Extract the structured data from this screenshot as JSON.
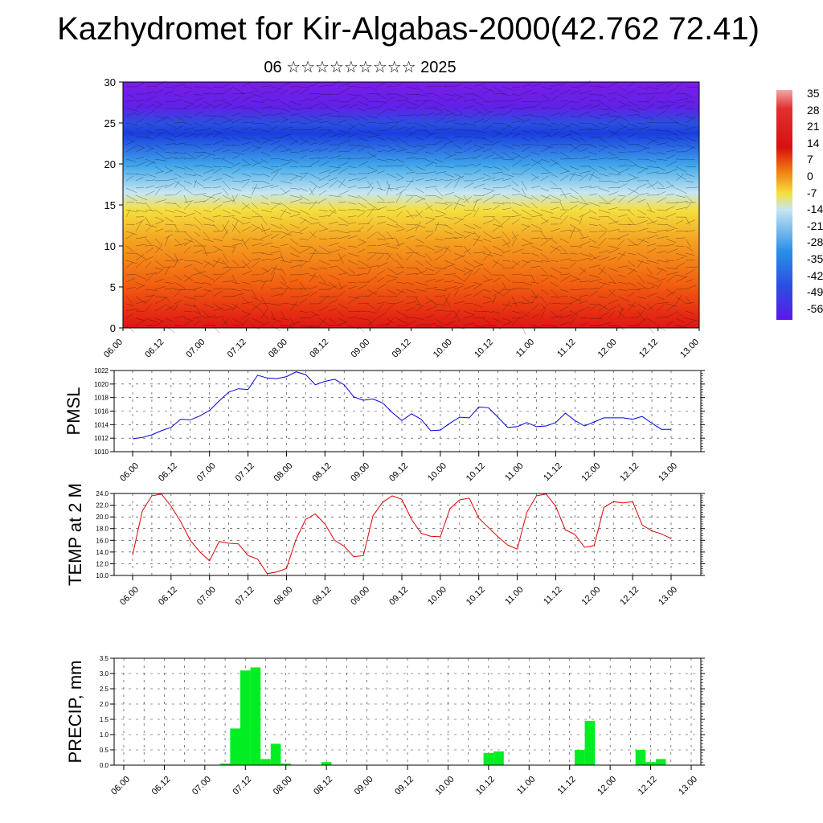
{
  "title": "Kazhydromet for Kir-Algabas-2000(42.762 72.41)",
  "subtitle": "06 ☆☆☆☆☆☆☆☆☆ 2025",
  "colorbar": {
    "labels": [
      "35",
      "28",
      "21",
      "14",
      "7",
      "0",
      "-7",
      "-14",
      "-21",
      "-28",
      "-35",
      "-42",
      "-49",
      "-56"
    ],
    "colors": {
      "top": "#f2a6a6",
      "red": "#d81010",
      "orange": "#f07a10",
      "yellow": "#f5e040",
      "paleblue": "#c6e6f2",
      "blue": "#2a7ae0",
      "violet": "#5a18e8"
    }
  },
  "time_ticks": [
    "06.00",
    "06.12",
    "07.00",
    "07.12",
    "08.00",
    "08.12",
    "09.00",
    "09.12",
    "10.00",
    "10.12",
    "11.00",
    "11.12",
    "12.00",
    "12.12",
    "13.00"
  ],
  "chart_data": [
    {
      "type": "heatmap",
      "title": "",
      "ylim": [
        0,
        30
      ],
      "yticks": [
        "0",
        "5",
        "10",
        "15",
        "20",
        "25",
        "30"
      ],
      "note_levels": {
        "red_near_surface": 0,
        "yellow_band": 15,
        "blue_band": 24,
        "violet_top": 30
      },
      "colors": [
        "#e01414",
        "#f27a10",
        "#f5e040",
        "#bfe0f2",
        "#2c5ee8",
        "#6a1ee8"
      ]
    },
    {
      "type": "line",
      "ylabel": "PMSL",
      "ylim": [
        1010,
        1022
      ],
      "yticks": [
        "1010",
        "1012",
        "1014",
        "1016",
        "1018",
        "1020",
        "1022"
      ],
      "color": "#0000dd",
      "values": [
        1011.9,
        1012.1,
        1012.5,
        1013.1,
        1013.6,
        1014.8,
        1014.7,
        1015.3,
        1016.1,
        1017.5,
        1018.8,
        1019.3,
        1019.2,
        1021.3,
        1020.9,
        1020.8,
        1021.1,
        1021.8,
        1021.4,
        1019.9,
        1020.4,
        1020.7,
        1019.9,
        1018.1,
        1017.6,
        1017.8,
        1017.2,
        1015.8,
        1014.6,
        1015.6,
        1014.8,
        1013.1,
        1013.2,
        1014.2,
        1015.1,
        1015.0,
        1016.6,
        1016.5,
        1015.1,
        1013.6,
        1013.7,
        1014.3,
        1013.7,
        1013.8,
        1014.3,
        1015.7,
        1014.6,
        1013.8,
        1014.4,
        1015.0,
        1015.0,
        1015.0,
        1014.8,
        1015.2,
        1014.2,
        1013.3,
        1013.3
      ]
    },
    {
      "type": "line",
      "ylabel": "TEMP at 2 M",
      "ylim": [
        10,
        24
      ],
      "yticks": [
        "10.0",
        "12.0",
        "14.0",
        "16.0",
        "18.0",
        "20.0",
        "22.0",
        "24.0"
      ],
      "color": "#dd0000",
      "values": [
        13.5,
        21.0,
        23.6,
        23.9,
        21.8,
        19.2,
        16.0,
        14.0,
        12.5,
        15.8,
        15.5,
        15.4,
        13.4,
        12.8,
        10.3,
        10.6,
        11.2,
        16.2,
        19.6,
        20.5,
        18.8,
        16.0,
        15.0,
        13.2,
        13.4,
        20.2,
        22.5,
        23.6,
        23.0,
        19.6,
        17.2,
        16.7,
        16.6,
        21.4,
        22.9,
        23.2,
        19.8,
        18.2,
        16.6,
        15.2,
        14.5,
        20.8,
        23.6,
        23.9,
        21.8,
        17.8,
        17.0,
        14.8,
        15.1,
        21.6,
        22.6,
        22.4,
        22.6,
        18.6,
        17.6,
        17.1,
        16.3
      ]
    },
    {
      "type": "bar",
      "ylabel": "PRECIP, mm",
      "ylim": [
        0,
        3.5
      ],
      "yticks": [
        "0.0",
        "0.5",
        "1.0",
        "1.5",
        "2.0",
        "2.5",
        "3.0",
        "3.5"
      ],
      "color": "#00ee22",
      "values": [
        0,
        0,
        0,
        0,
        0,
        0,
        0,
        0,
        0,
        0,
        0.05,
        1.2,
        3.1,
        3.2,
        0.2,
        0.7,
        0.05,
        0,
        0,
        0,
        0.1,
        0,
        0,
        0,
        0,
        0,
        0,
        0,
        0,
        0,
        0,
        0,
        0,
        0,
        0,
        0,
        0.4,
        0.45,
        0,
        0,
        0,
        0,
        0,
        0,
        0,
        0.5,
        1.45,
        0,
        0,
        0,
        0,
        0.5,
        0.1,
        0.2,
        0,
        0,
        0
      ]
    }
  ]
}
